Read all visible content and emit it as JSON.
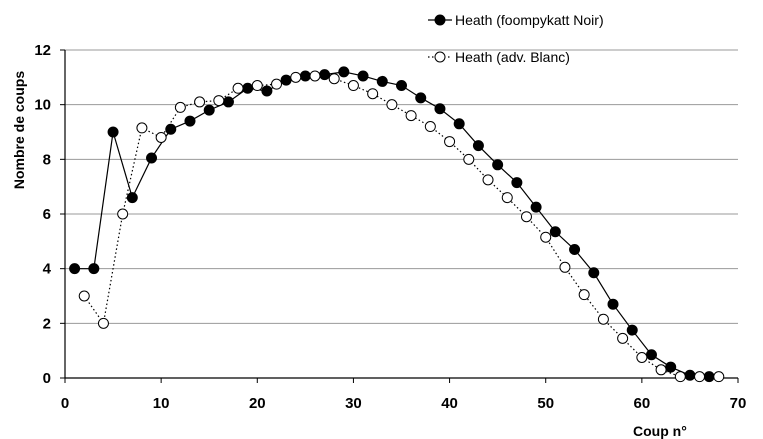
{
  "chart_data": {
    "type": "line",
    "xlabel": "Coup n°",
    "ylabel": "Nombre de coups",
    "xlim": [
      0,
      70
    ],
    "ylim": [
      0,
      12
    ],
    "x_ticks": [
      0,
      10,
      20,
      30,
      40,
      50,
      60,
      70
    ],
    "y_ticks": [
      0,
      2,
      4,
      6,
      8,
      10,
      12
    ],
    "grid": "horizontal",
    "legend_position": "top-right",
    "series": [
      {
        "name": "Heath (foompykatt Noir)",
        "marker": "filled-circle",
        "line": "solid",
        "color": "#000000",
        "points": [
          [
            1,
            4.0
          ],
          [
            3,
            4.0
          ],
          [
            5,
            9.0
          ],
          [
            7,
            6.6
          ],
          [
            9,
            8.05
          ],
          [
            11,
            9.1
          ],
          [
            13,
            9.4
          ],
          [
            15,
            9.8
          ],
          [
            17,
            10.1
          ],
          [
            19,
            10.6
          ],
          [
            21,
            10.5
          ],
          [
            23,
            10.9
          ],
          [
            25,
            11.05
          ],
          [
            27,
            11.1
          ],
          [
            29,
            11.2
          ],
          [
            31,
            11.05
          ],
          [
            33,
            10.85
          ],
          [
            35,
            10.7
          ],
          [
            37,
            10.25
          ],
          [
            39,
            9.85
          ],
          [
            41,
            9.3
          ],
          [
            43,
            8.5
          ],
          [
            45,
            7.8
          ],
          [
            47,
            7.15
          ],
          [
            49,
            6.25
          ],
          [
            51,
            5.35
          ],
          [
            53,
            4.7
          ],
          [
            55,
            3.85
          ],
          [
            57,
            2.7
          ],
          [
            59,
            1.75
          ],
          [
            61,
            0.85
          ],
          [
            63,
            0.4
          ],
          [
            65,
            0.1
          ],
          [
            67,
            0.05
          ]
        ]
      },
      {
        "name": "Heath (adv. Blanc)",
        "marker": "open-circle",
        "line": "dotted",
        "color": "#000000",
        "points": [
          [
            2,
            3.0
          ],
          [
            4,
            2.0
          ],
          [
            6,
            6.0
          ],
          [
            8,
            9.15
          ],
          [
            10,
            8.8
          ],
          [
            12,
            9.9
          ],
          [
            14,
            10.1
          ],
          [
            16,
            10.15
          ],
          [
            18,
            10.6
          ],
          [
            20,
            10.7
          ],
          [
            22,
            10.75
          ],
          [
            24,
            11.0
          ],
          [
            26,
            11.05
          ],
          [
            28,
            10.95
          ],
          [
            30,
            10.7
          ],
          [
            32,
            10.4
          ],
          [
            34,
            10.0
          ],
          [
            36,
            9.6
          ],
          [
            38,
            9.2
          ],
          [
            40,
            8.65
          ],
          [
            42,
            8.0
          ],
          [
            44,
            7.25
          ],
          [
            46,
            6.6
          ],
          [
            48,
            5.9
          ],
          [
            50,
            5.15
          ],
          [
            52,
            4.05
          ],
          [
            54,
            3.05
          ],
          [
            56,
            2.15
          ],
          [
            58,
            1.45
          ],
          [
            60,
            0.75
          ],
          [
            62,
            0.3
          ],
          [
            64,
            0.05
          ],
          [
            66,
            0.05
          ],
          [
            68,
            0.05
          ]
        ]
      }
    ]
  }
}
